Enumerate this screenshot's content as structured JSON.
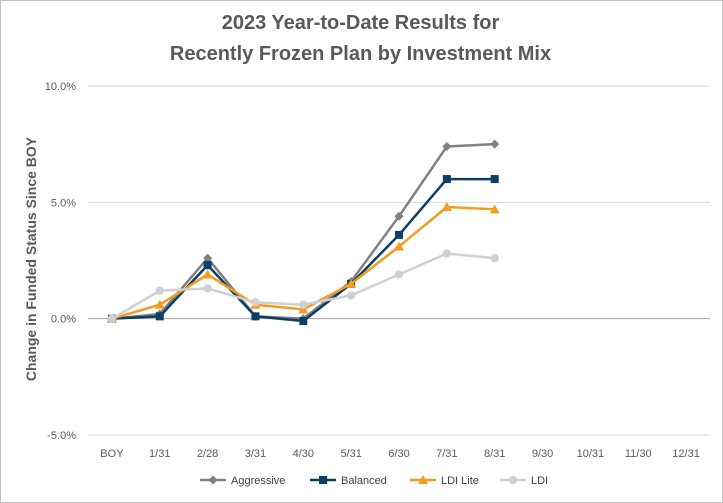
{
  "chart_data": {
    "type": "line",
    "title_line1": "2023 Year-to-Date Results for",
    "title_line2": "Recently Frozen Plan by Investment Mix",
    "ylabel": "Change in Funded Status Since BOY",
    "xlabel": "",
    "categories": [
      "BOY",
      "1/31",
      "2/28",
      "3/31",
      "4/30",
      "5/31",
      "6/30",
      "7/31",
      "8/31",
      "9/30",
      "10/31",
      "11/30",
      "12/31"
    ],
    "ylim": [
      -5.0,
      10.0
    ],
    "yticks": [
      -5.0,
      0.0,
      5.0,
      10.0
    ],
    "ytick_labels": [
      "-5.0%",
      "0.0%",
      "5.0%",
      "10.0%"
    ],
    "grid": "horizontal",
    "legend_position": "bottom",
    "series": [
      {
        "name": "Aggressive",
        "color": "#808080",
        "marker": "diamond",
        "values": [
          0.0,
          0.2,
          2.6,
          0.1,
          0.0,
          1.6,
          4.4,
          7.4,
          7.5,
          null,
          null,
          null,
          null
        ]
      },
      {
        "name": "Balanced",
        "color": "#0d3f66",
        "marker": "square",
        "values": [
          0.0,
          0.1,
          2.3,
          0.1,
          -0.1,
          1.5,
          3.6,
          6.0,
          6.0,
          null,
          null,
          null,
          null
        ]
      },
      {
        "name": "LDI Lite",
        "color": "#f39c1e",
        "marker": "triangle",
        "values": [
          0.0,
          0.6,
          1.9,
          0.6,
          0.4,
          1.5,
          3.1,
          4.8,
          4.7,
          null,
          null,
          null,
          null
        ]
      },
      {
        "name": "LDI",
        "color": "#cfd0d4",
        "marker": "circle",
        "values": [
          0.0,
          1.2,
          1.3,
          0.7,
          0.6,
          1.0,
          1.9,
          2.8,
          2.6,
          null,
          null,
          null,
          null
        ]
      }
    ]
  }
}
